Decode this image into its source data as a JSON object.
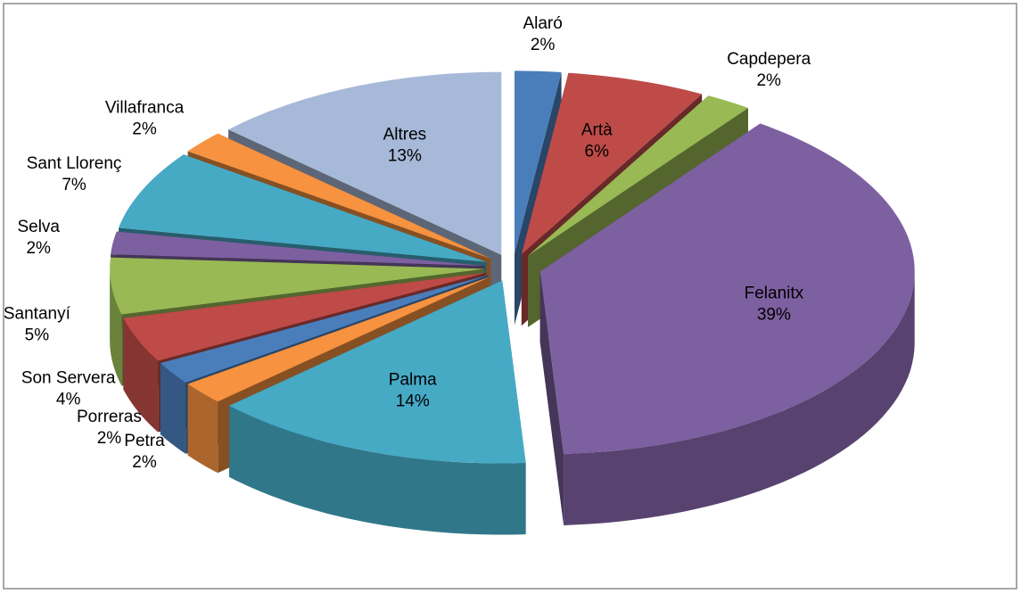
{
  "chart_data": {
    "type": "pie3d",
    "categories": [
      "Alaró",
      "Artà",
      "Capdepera",
      "Felanitx",
      "Palma",
      "Petra",
      "Porreras",
      "Son Servera",
      "Santanyí",
      "Selva",
      "Sant Llorenç",
      "Villafranca",
      "Altres"
    ],
    "values": [
      2,
      6,
      2,
      39,
      14,
      2,
      2,
      4,
      5,
      2,
      7,
      2,
      13
    ],
    "value_labels": [
      "2%",
      "6%",
      "2%",
      "39%",
      "14%",
      "2%",
      "2%",
      "4%",
      "5%",
      "2%",
      "7%",
      "2%",
      "13%"
    ],
    "colors": [
      "#4a7ebb",
      "#be4b48",
      "#98b954",
      "#7d60a0",
      "#46aac5",
      "#f69240",
      "#4a7ebb",
      "#be4b48",
      "#98b954",
      "#7d60a0",
      "#46aac5",
      "#f69240",
      "#a7b9d8"
    ]
  }
}
